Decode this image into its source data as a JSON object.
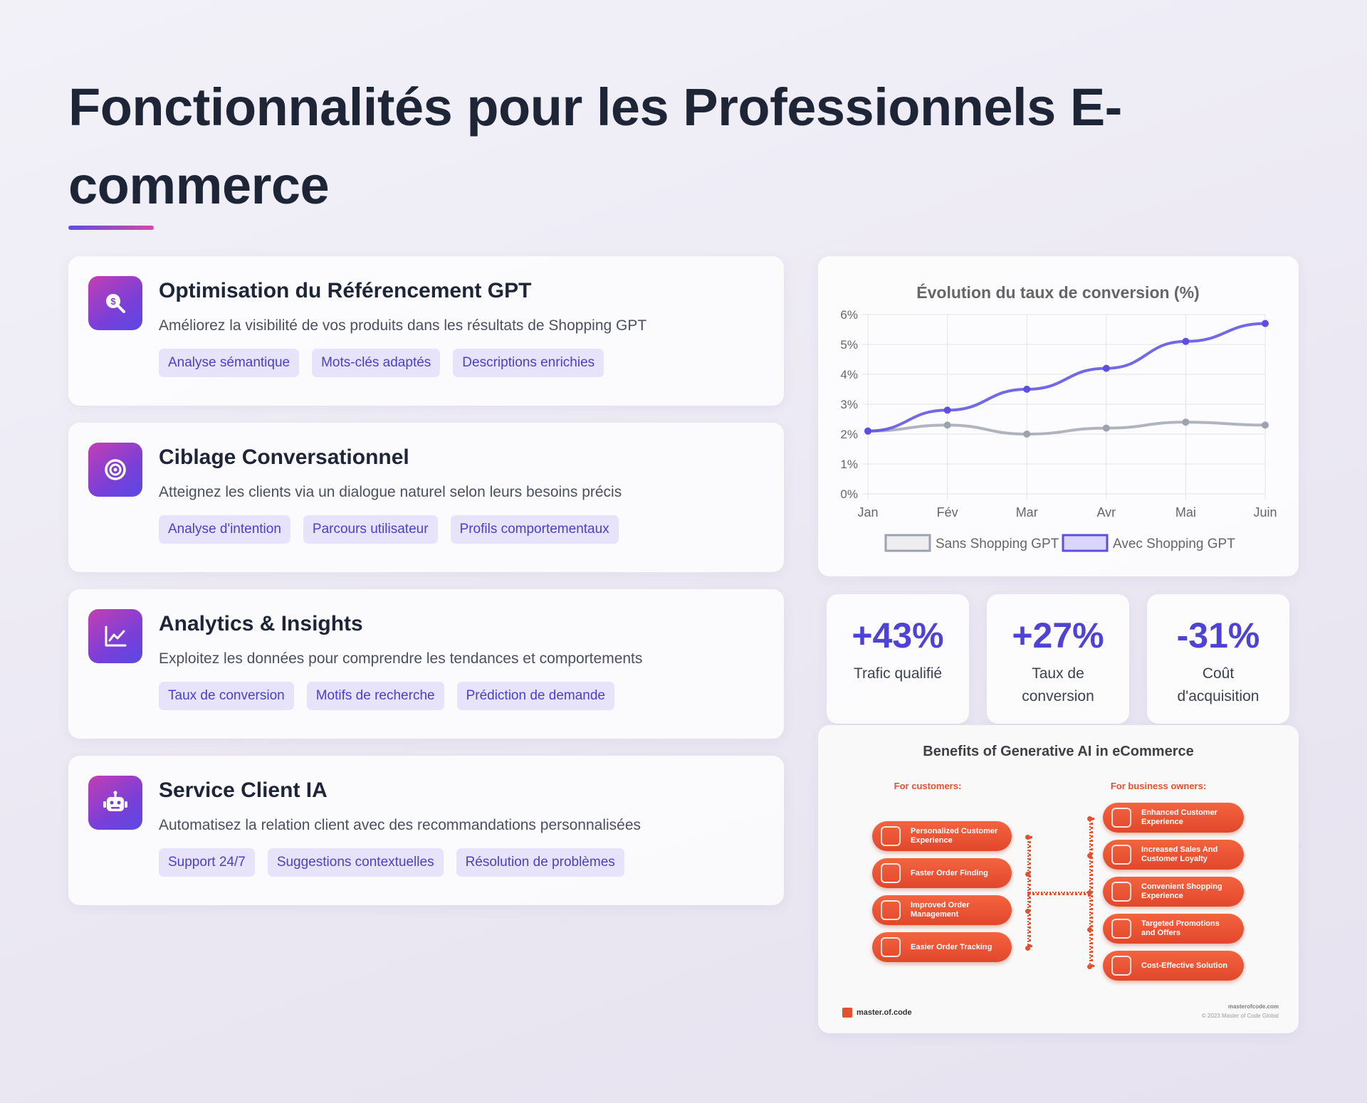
{
  "page": {
    "title": "Fonctionnalités pour les Professionnels E-commerce"
  },
  "features": [
    {
      "icon": "dollar-search-icon",
      "title": "Optimisation du Référencement GPT",
      "description": "Améliorez la visibilité de vos produits dans les résultats de Shopping GPT",
      "tags": [
        "Analyse sémantique",
        "Mots-clés adaptés",
        "Descriptions enrichies"
      ]
    },
    {
      "icon": "target-icon",
      "title": "Ciblage Conversationnel",
      "description": "Atteignez les clients via un dialogue naturel selon leurs besoins précis",
      "tags": [
        "Analyse d'intention",
        "Parcours utilisateur",
        "Profils comportementaux"
      ]
    },
    {
      "icon": "chart-line-icon",
      "title": "Analytics & Insights",
      "description": "Exploitez les données pour comprendre les tendances et comportements",
      "tags": [
        "Taux de conversion",
        "Motifs de recherche",
        "Prédiction de demande"
      ]
    },
    {
      "icon": "robot-icon",
      "title": "Service Client IA",
      "description": "Automatisez la relation client avec des recommandations personnalisées",
      "tags": [
        "Support 24/7",
        "Suggestions contextuelles",
        "Résolution de problèmes"
      ]
    }
  ],
  "chart_data": {
    "type": "line",
    "title": "Évolution du taux de conversion (%)",
    "categories": [
      "Jan",
      "Fév",
      "Mar",
      "Avr",
      "Mai",
      "Juin"
    ],
    "ylim": [
      0,
      6
    ],
    "yticks": [
      "0%",
      "1%",
      "2%",
      "3%",
      "4%",
      "5%",
      "6%"
    ],
    "grid": true,
    "legend_position": "bottom",
    "series": [
      {
        "name": "Sans Shopping GPT",
        "values": [
          2.1,
          2.3,
          2.0,
          2.2,
          2.4,
          2.3
        ],
        "color": "#9ca3af"
      },
      {
        "name": "Avec Shopping GPT",
        "values": [
          2.1,
          2.8,
          3.5,
          4.2,
          5.1,
          5.7
        ],
        "color": "#5b4ee0"
      }
    ]
  },
  "stats": [
    {
      "value": "+43%",
      "label": "Trafic qualifié"
    },
    {
      "value": "+27%",
      "label": "Taux de conversion"
    },
    {
      "value": "-31%",
      "label": "Coût d'acquisition"
    }
  ],
  "infographic": {
    "title": "Benefits of Generative AI in eCommerce",
    "customers_heading": "For customers:",
    "owners_heading": "For business owners:",
    "customers": [
      "Personalized Customer Experience",
      "Faster Order Finding",
      "Improved Order Management",
      "Easier Order Tracking"
    ],
    "owners": [
      "Enhanced Customer Experience",
      "Increased Sales And Customer Loyalty",
      "Convenient Shopping Experience",
      "Targeted Promotions and Offers",
      "Cost-Effective Solution"
    ],
    "brand": "master.of.code",
    "site": "masterofcode.com",
    "copyright": "© 2023 Master of Code Global"
  },
  "colors": {
    "accent": "#5b4ee0",
    "tag_bg": "#e6e3fb",
    "infographic_orange": "#e3512f"
  }
}
